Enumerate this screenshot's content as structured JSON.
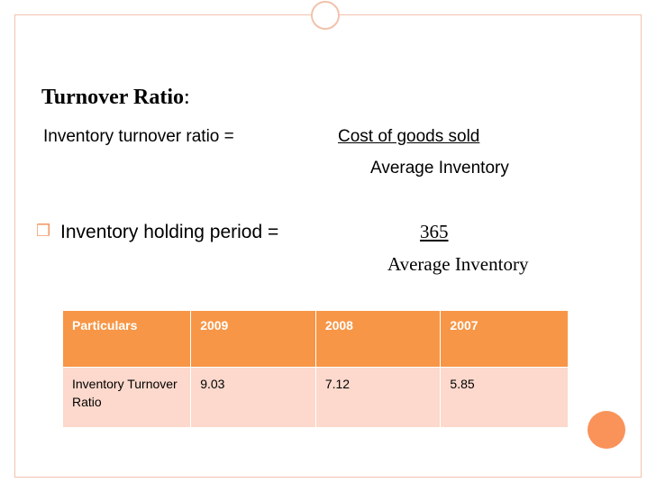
{
  "heading": {
    "bold": "Turnover Ratio",
    "colon": ":"
  },
  "formula1": {
    "label": "Inventory turnover ratio =",
    "numerator": "Cost of goods sold",
    "denominator": "Average Inventory"
  },
  "formula2": {
    "label": "Inventory holding period =",
    "numerator": "365",
    "denominator": "Average Inventory"
  },
  "table": {
    "headers": [
      "Particulars",
      "2009",
      "2008",
      "2007"
    ],
    "row": [
      "Inventory Turnover Ratio",
      "9.03",
      "7.12",
      "5.85"
    ]
  },
  "colors": {
    "accent": "#f79646",
    "row_fill": "#fcd9cc",
    "frame": "#f2c2ad",
    "bullet": "#f39b6a"
  }
}
